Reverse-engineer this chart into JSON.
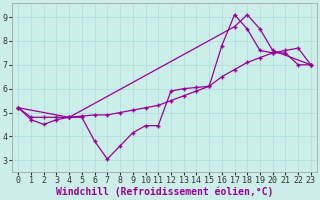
{
  "xlabel": "Windchill (Refroidissement éolien,°C)",
  "bg_color": "#cceee8",
  "line_color": "#990099",
  "xlim": [
    -0.5,
    23.5
  ],
  "ylim": [
    2.5,
    9.6
  ],
  "xticks": [
    0,
    1,
    2,
    3,
    4,
    5,
    6,
    7,
    8,
    9,
    10,
    11,
    12,
    13,
    14,
    15,
    16,
    17,
    18,
    19,
    20,
    21,
    22,
    23
  ],
  "yticks": [
    3,
    4,
    5,
    6,
    7,
    8,
    9
  ],
  "line1_x": [
    0,
    1,
    2,
    3,
    4,
    5,
    6,
    7,
    8,
    9,
    10,
    11,
    12,
    13,
    14,
    15,
    16,
    17,
    18,
    19,
    20,
    21,
    22,
    23
  ],
  "line1_y": [
    5.2,
    4.7,
    4.5,
    4.7,
    4.8,
    4.8,
    3.8,
    3.05,
    3.6,
    4.15,
    4.45,
    4.45,
    5.9,
    6.0,
    6.05,
    6.1,
    7.8,
    9.1,
    8.5,
    7.6,
    7.5,
    7.5,
    7.0,
    7.0
  ],
  "line2_x": [
    0,
    4,
    17,
    18,
    19,
    20,
    23
  ],
  "line2_y": [
    5.2,
    4.8,
    8.6,
    9.1,
    8.5,
    7.6,
    7.0
  ],
  "line3_x": [
    0,
    1,
    2,
    3,
    4,
    5,
    6,
    7,
    8,
    9,
    10,
    11,
    12,
    13,
    14,
    15,
    16,
    17,
    18,
    19,
    20,
    21,
    22,
    23
  ],
  "line3_y": [
    5.2,
    4.8,
    4.8,
    4.8,
    4.8,
    4.85,
    4.9,
    4.9,
    5.0,
    5.1,
    5.2,
    5.3,
    5.5,
    5.7,
    5.9,
    6.1,
    6.5,
    6.8,
    7.1,
    7.3,
    7.5,
    7.6,
    7.7,
    7.0
  ],
  "grid_color": "#aadddd",
  "xlabel_fontsize": 7,
  "tick_fontsize": 6,
  "xlabel_color": "#990099"
}
